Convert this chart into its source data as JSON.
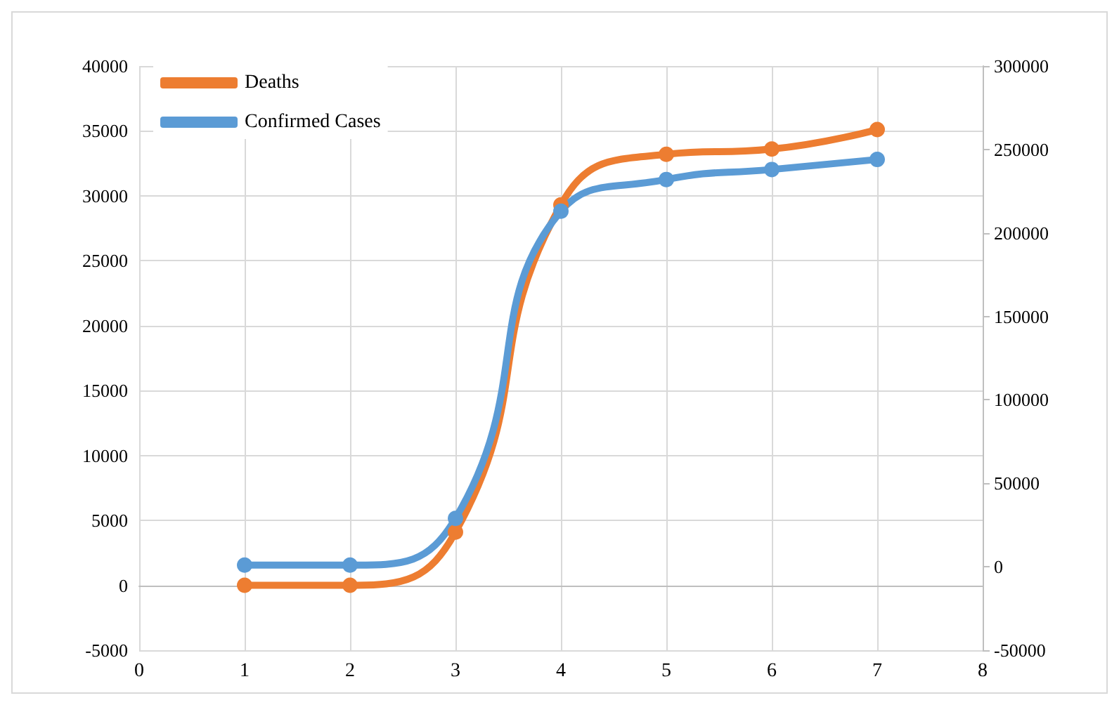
{
  "chart_data": {
    "type": "line",
    "x": [
      1,
      2,
      3,
      4,
      5,
      6,
      7
    ],
    "series": [
      {
        "name": "Deaths",
        "color": "#ed7d31",
        "values": [
          0,
          0,
          4100,
          29300,
          33200,
          33600,
          35100
        ]
      },
      {
        "name": "Confirmed Cases",
        "color": "#5b9bd5",
        "axis": "y2",
        "values": [
          1000,
          1000,
          29000,
          213000,
          232000,
          238000,
          244000
        ]
      }
    ],
    "xlim": [
      0,
      8
    ],
    "xticks": [
      0,
      1,
      2,
      3,
      4,
      5,
      6,
      7,
      8
    ],
    "ylim": [
      -5000,
      40000
    ],
    "yticks": [
      -5000,
      0,
      5000,
      10000,
      15000,
      20000,
      25000,
      30000,
      35000,
      40000
    ],
    "y2lim": [
      -50000,
      300000
    ],
    "y2ticks": [
      -50000,
      0,
      50000,
      100000,
      150000,
      200000,
      250000,
      300000
    ],
    "grid": true,
    "legend": "top left",
    "marker": "circle",
    "line_style": "solid"
  }
}
